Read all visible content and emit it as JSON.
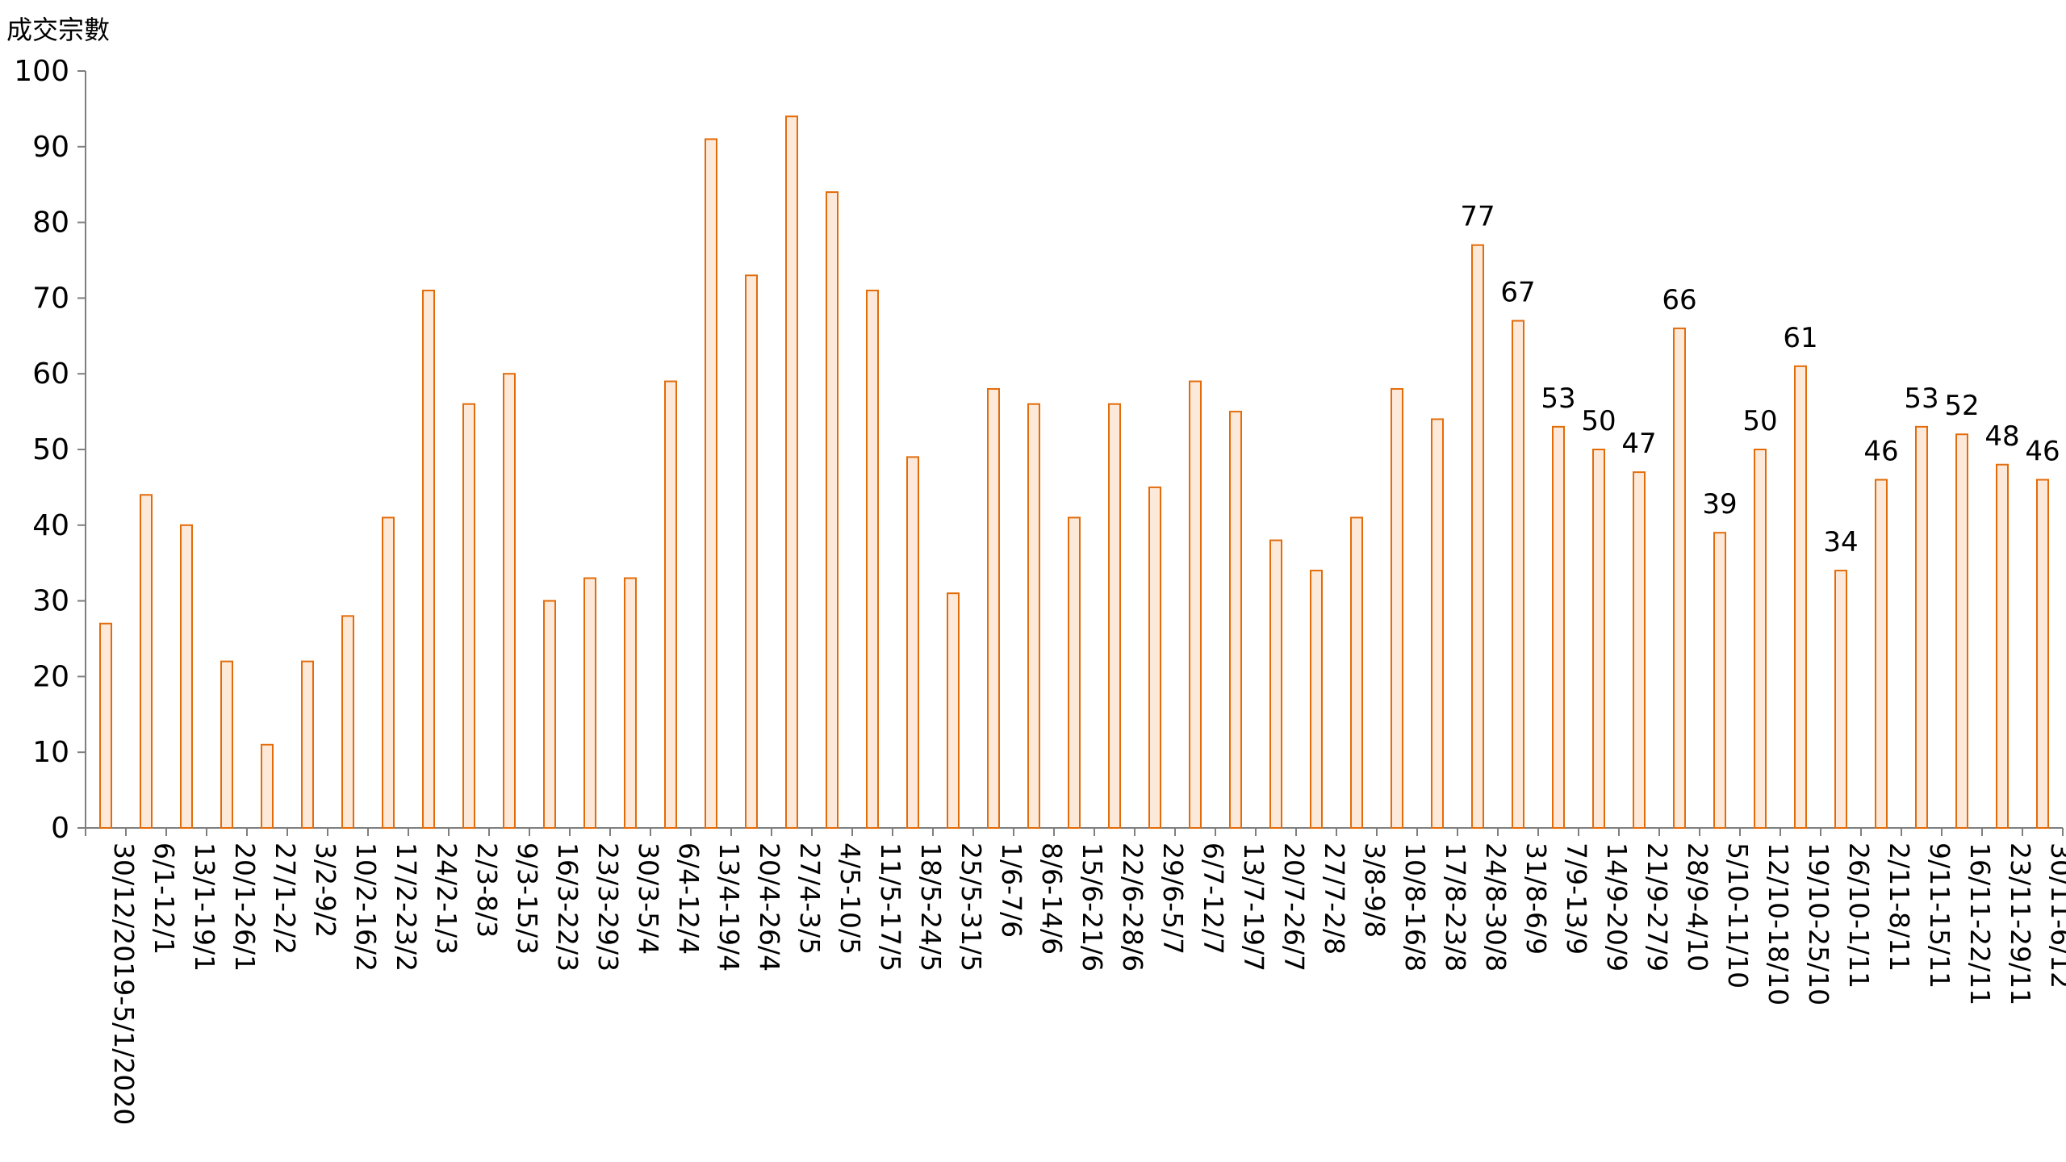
{
  "chart_data": {
    "type": "bar",
    "ylabel": "成交宗數",
    "xlabel": "",
    "title": "",
    "ylim": [
      0,
      100
    ],
    "yticks": [
      0,
      10,
      20,
      30,
      40,
      50,
      60,
      70,
      80,
      90,
      100
    ],
    "categories": [
      "30/12/2019-5/1/2020",
      "6/1-12/1",
      "13/1-19/1",
      "20/1-26/1",
      "27/1-2/2",
      "3/2-9/2",
      "10/2-16/2",
      "17/2-23/2",
      "24/2-1/3",
      "2/3-8/3",
      "9/3-15/3",
      "16/3-22/3",
      "23/3-29/3",
      "30/3-5/4",
      "6/4-12/4",
      "13/4-19/4",
      "20/4-26/4",
      "27/4-3/5",
      "4/5-10/5",
      "11/5-17/5",
      "18/5-24/5",
      "25/5-31/5",
      "1/6-7/6",
      "8/6-14/6",
      "15/6-21/6",
      "22/6-28/6",
      "29/6-5/7",
      "6/7-12/7",
      "13/7-19/7",
      "20/7-26/7",
      "27/7-2/8",
      "3/8-9/8",
      "10/8-16/8",
      "17/8-23/8",
      "24/8-30/8",
      "31/8-6/9",
      "7/9-13/9",
      "14/9-20/9",
      "21/9-27/9",
      "28/9-4/10",
      "5/10-11/10",
      "12/10-18/10",
      "19/10-25/10",
      "26/10-1/11",
      "2/11-8/11",
      "9/11-15/11",
      "16/11-22/11",
      "23/11-29/11",
      "30/11-6/12"
    ],
    "values": [
      27,
      44,
      40,
      22,
      11,
      22,
      28,
      41,
      71,
      56,
      60,
      30,
      33,
      33,
      59,
      91,
      73,
      94,
      84,
      71,
      49,
      31,
      58,
      56,
      41,
      56,
      45,
      59,
      55,
      38,
      34,
      41,
      58,
      54,
      77,
      67,
      53,
      50,
      47,
      66,
      39,
      50,
      61,
      34,
      46,
      53,
      52,
      48,
      46
    ],
    "data_labels": [
      "",
      "",
      "",
      "",
      "",
      "",
      "",
      "",
      "",
      "",
      "",
      "",
      "",
      "",
      "",
      "",
      "",
      "",
      "",
      "",
      "",
      "",
      "",
      "",
      "",
      "",
      "",
      "",
      "",
      "",
      "",
      "",
      "",
      "",
      "77",
      "67",
      "53",
      "50",
      "47",
      "66",
      "39",
      "50",
      "61",
      "34",
      "46",
      "53",
      "52",
      "48",
      "46"
    ],
    "colors": {
      "bar_fill": "#fde9d9",
      "bar_stroke": "#e36c0a",
      "axis": "#7f7f7f"
    },
    "grid": false,
    "legend": "none"
  }
}
